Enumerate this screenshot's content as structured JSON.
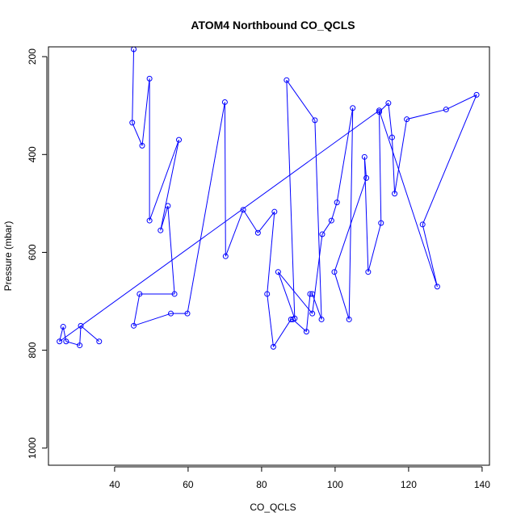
{
  "chart_data": {
    "type": "scatter",
    "title": "ATOM4 Northbound CO_QCLS",
    "xlabel": "CO_QCLS",
    "ylabel": "Pressure (mbar)",
    "xlim": [
      22,
      142
    ],
    "ylim": [
      1035,
      180
    ],
    "y_reversed": true,
    "grid": false,
    "series_color": "#0000ff",
    "x_ticks": [
      40,
      60,
      80,
      100,
      120,
      140
    ],
    "y_ticks": [
      200,
      400,
      600,
      800,
      1000
    ],
    "x": [
      45.2,
      44.8,
      47.5,
      49.5,
      49.5,
      57.5,
      52.5,
      54.5,
      56.3,
      46.8,
      45.2,
      55.3,
      59.8,
      70.0,
      70.2,
      75.0,
      79.0,
      83.5,
      81.5,
      83.2,
      88.0,
      88.5,
      92.2,
      93.2,
      93.8,
      96.3,
      94.5,
      86.8,
      89.0,
      84.5,
      93.8,
      96.5,
      99.0,
      100.5,
      104.8,
      103.8,
      99.8,
      108.5,
      108.0,
      109.0,
      112.5,
      112.0,
      114.5,
      115.5,
      116.2,
      119.5,
      130.2,
      138.5,
      123.8,
      127.8,
      112.0,
      25.0,
      26.0,
      26.8,
      30.5,
      30.8,
      35.8
    ],
    "y": [
      185,
      335,
      382,
      245,
      535,
      370,
      555,
      505,
      685,
      685,
      750,
      725,
      725,
      293,
      608,
      513,
      560,
      517,
      685,
      793,
      737,
      737,
      762,
      685,
      685,
      737,
      330,
      248,
      735,
      640,
      725,
      563,
      535,
      498,
      305,
      737,
      640,
      448,
      405,
      640,
      540,
      313,
      295,
      365,
      480,
      328,
      308,
      278,
      543,
      670,
      310,
      782,
      752,
      782,
      790,
      750,
      782
    ]
  }
}
